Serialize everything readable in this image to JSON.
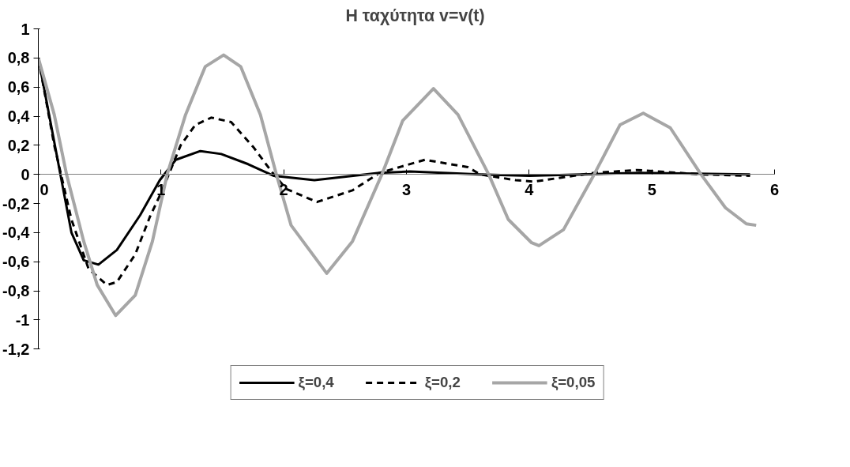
{
  "chart_data": {
    "type": "line",
    "title": "Η ταχύτητα  v=v(t)",
    "xlim": [
      0,
      6
    ],
    "xticks": [
      0,
      1,
      2,
      3,
      4,
      5,
      6
    ],
    "ylim": [
      -1.2,
      1
    ],
    "yticks": [
      {
        "value": -1.2,
        "label": "-1,2"
      },
      {
        "value": -1,
        "label": "-1"
      },
      {
        "value": -0.8,
        "label": "-0,8"
      },
      {
        "value": -0.6,
        "label": "-0,6"
      },
      {
        "value": -0.4,
        "label": "-0,4"
      },
      {
        "value": -0.2,
        "label": "-0,2"
      },
      {
        "value": 0,
        "label": "0"
      },
      {
        "value": 0.2,
        "label": "0,2"
      },
      {
        "value": 0.4,
        "label": "0,4"
      },
      {
        "value": 0.6,
        "label": "0,6"
      },
      {
        "value": 0.8,
        "label": "0,8"
      },
      {
        "value": 1,
        "label": "1"
      }
    ],
    "grid": false,
    "legend": "bottom",
    "marker": "none",
    "series": [
      {
        "name": "ξ=0,4",
        "color": "#000000",
        "line_style": "solid",
        "x": [
          0,
          0.27,
          0.37,
          0.49,
          0.64,
          0.83,
          0.99,
          1.12,
          1.32,
          1.49,
          1.71,
          1.92,
          2.25,
          2.78,
          3.03,
          3.6,
          4.0,
          4.9,
          5.8
        ],
        "values": [
          0.8,
          -0.4,
          -0.59,
          -0.62,
          -0.52,
          -0.28,
          -0.04,
          0.1,
          0.16,
          0.14,
          0.07,
          -0.01,
          -0.04,
          0.01,
          0.02,
          0,
          -0.01,
          0.01,
          0
        ]
      },
      {
        "name": "ξ=0,2",
        "color": "#000000",
        "line_style": "dashed",
        "x": [
          0,
          0.13,
          0.27,
          0.41,
          0.56,
          0.64,
          0.79,
          0.91,
          1.01,
          1.16,
          1.28,
          1.41,
          1.57,
          1.75,
          1.9,
          2.02,
          2.27,
          2.56,
          2.78,
          3.15,
          3.5,
          3.6,
          3.89,
          4.04,
          4.36,
          4.53,
          4.88,
          5.4,
          5.8
        ],
        "values": [
          0.8,
          0.2,
          -0.31,
          -0.65,
          -0.76,
          -0.74,
          -0.55,
          -0.29,
          -0.11,
          0.2,
          0.34,
          0.39,
          0.36,
          0.19,
          0.02,
          -0.1,
          -0.19,
          -0.11,
          0.01,
          0.1,
          0.05,
          0,
          -0.04,
          -0.05,
          -0.01,
          0.01,
          0.03,
          0,
          -0.01
        ]
      },
      {
        "name": "ξ=0,05",
        "color": "#a6a6a6",
        "line_style": "solid",
        "x": [
          0,
          0.13,
          0.23,
          0.37,
          0.48,
          0.63,
          0.79,
          0.93,
          1.05,
          1.2,
          1.36,
          1.51,
          1.65,
          1.81,
          1.94,
          2.06,
          2.35,
          2.56,
          2.8,
          2.97,
          3.22,
          3.42,
          3.67,
          3.83,
          4.02,
          4.08,
          4.28,
          4.53,
          4.74,
          4.93,
          5.15,
          5.4,
          5.6,
          5.77,
          5.85
        ],
        "values": [
          0.8,
          0.41,
          0,
          -0.46,
          -0.76,
          -0.97,
          -0.83,
          -0.46,
          0,
          0.41,
          0.74,
          0.82,
          0.74,
          0.41,
          0,
          -0.35,
          -0.68,
          -0.46,
          0,
          0.37,
          0.59,
          0.41,
          0,
          -0.31,
          -0.47,
          -0.49,
          -0.38,
          0,
          0.34,
          0.42,
          0.32,
          0,
          -0.23,
          -0.34,
          -0.35
        ]
      }
    ]
  }
}
